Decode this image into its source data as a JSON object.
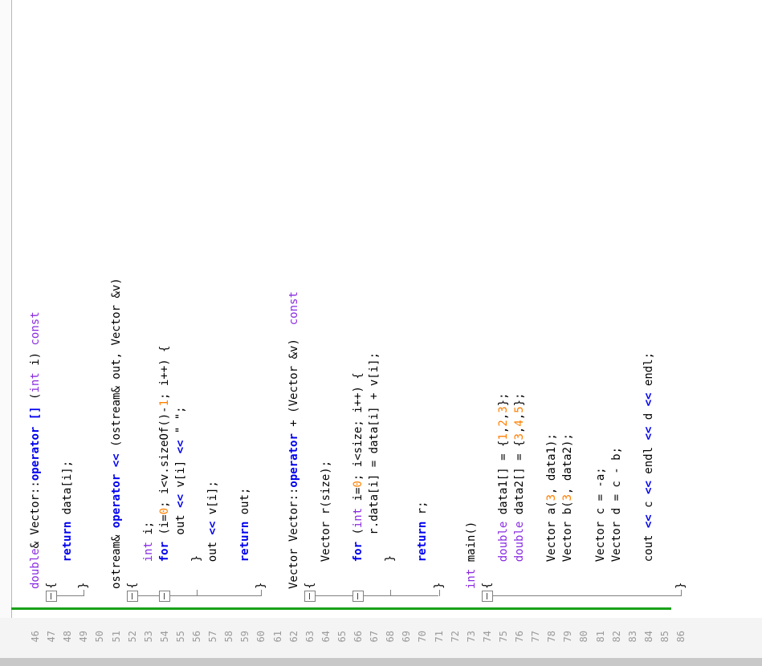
{
  "editor": {
    "line_numbers": [
      "46",
      "47",
      "48",
      "49",
      "50",
      "51",
      "52",
      "53",
      "54",
      "55",
      "56",
      "57",
      "58",
      "59",
      "60",
      "61",
      "62",
      "63",
      "64",
      "65",
      "66",
      "67",
      "68",
      "69",
      "70",
      "71",
      "72",
      "73",
      "74",
      "75",
      "76",
      "77",
      "78",
      "79",
      "80",
      "81",
      "82",
      "83",
      "84",
      "85",
      "86"
    ],
    "lines": [
      {
        "n": "46",
        "html": "<span class='ty'>double</span>&amp; Vector::<span class='kw'>operator</span> <span class='kw'>[]</span> (<span class='ty'>int</span> i) <span class='ty'>const</span>"
      },
      {
        "n": "47",
        "html": "{"
      },
      {
        "n": "48",
        "html": "    <span class='kw'>return</span> data[i];"
      },
      {
        "n": "49",
        "html": "}"
      },
      {
        "n": "50",
        "html": ""
      },
      {
        "n": "51",
        "html": "ostream&amp; <span class='kw'>operator</span> <span class='kw'>&lt;&lt;</span> (ostream&amp; out, Vector &amp;v)"
      },
      {
        "n": "52",
        "html": "{"
      },
      {
        "n": "53",
        "html": "    <span class='ty'>int</span> i;"
      },
      {
        "n": "54",
        "html": "    <span class='kw'>for</span> (i=<span class='num'>0</span>; i&lt;v.sizeOf()-<span class='num'>1</span>; i++) {"
      },
      {
        "n": "55",
        "html": "        out <span class='kw'>&lt;&lt;</span> v[i] <span class='kw'>&lt;&lt;</span> \" \";"
      },
      {
        "n": "56",
        "html": "    }"
      },
      {
        "n": "57",
        "html": "    out <span class='kw'>&lt;&lt;</span> v[i];"
      },
      {
        "n": "58",
        "html": ""
      },
      {
        "n": "59",
        "html": "    <span class='kw'>return</span> out;"
      },
      {
        "n": "60",
        "html": "}"
      },
      {
        "n": "61",
        "html": ""
      },
      {
        "n": "62",
        "html": "Vector Vector::<span class='kw'>operator</span> + (Vector &amp;v)  <span class='ty'>const</span>"
      },
      {
        "n": "63",
        "html": "{"
      },
      {
        "n": "64",
        "html": "    Vector r(size);"
      },
      {
        "n": "65",
        "html": ""
      },
      {
        "n": "66",
        "html": "    <span class='kw'>for</span> (<span class='ty'>int</span> i=<span class='num'>0</span>; i&lt;size; i++) {"
      },
      {
        "n": "67",
        "html": "        r.data[i] = data[i] + v[i];"
      },
      {
        "n": "68",
        "html": "    }"
      },
      {
        "n": "69",
        "html": ""
      },
      {
        "n": "70",
        "html": "    <span class='kw'>return</span> r;"
      },
      {
        "n": "71",
        "html": "}"
      },
      {
        "n": "72",
        "html": ""
      },
      {
        "n": "73",
        "html": "<span class='ty'>int</span> main()"
      },
      {
        "n": "74",
        "html": "{"
      },
      {
        "n": "75",
        "html": "    <span class='ty'>double</span> data1[] = {<span class='num'>1</span>,<span class='num'>2</span>,<span class='num'>3</span>};"
      },
      {
        "n": "76",
        "html": "    <span class='ty'>double</span> data2[] = {<span class='num'>3</span>,<span class='num'>4</span>,<span class='num'>5</span>};"
      },
      {
        "n": "77",
        "html": ""
      },
      {
        "n": "78",
        "html": "    Vector a(<span class='num'>3</span>, data1);"
      },
      {
        "n": "79",
        "html": "    Vector b(<span class='num'>3</span>, data2);"
      },
      {
        "n": "80",
        "html": ""
      },
      {
        "n": "81",
        "html": "    Vector c = -a;"
      },
      {
        "n": "82",
        "html": "    Vector d = c - b;"
      },
      {
        "n": "83",
        "html": ""
      },
      {
        "n": "84",
        "html": "    cout <span class='kw'>&lt;&lt;</span> c <span class='kw'>&lt;&lt;</span> endl <span class='kw'>&lt;&lt;</span> d <span class='kw'>&lt;&lt;</span> endl;"
      },
      {
        "n": "85",
        "html": ""
      },
      {
        "n": "86",
        "html": "}"
      }
    ],
    "colors": {
      "keyword": "#0000ee",
      "type": "#8a2be2",
      "number": "#ff8000",
      "change_bar": "#1aa11a"
    }
  }
}
